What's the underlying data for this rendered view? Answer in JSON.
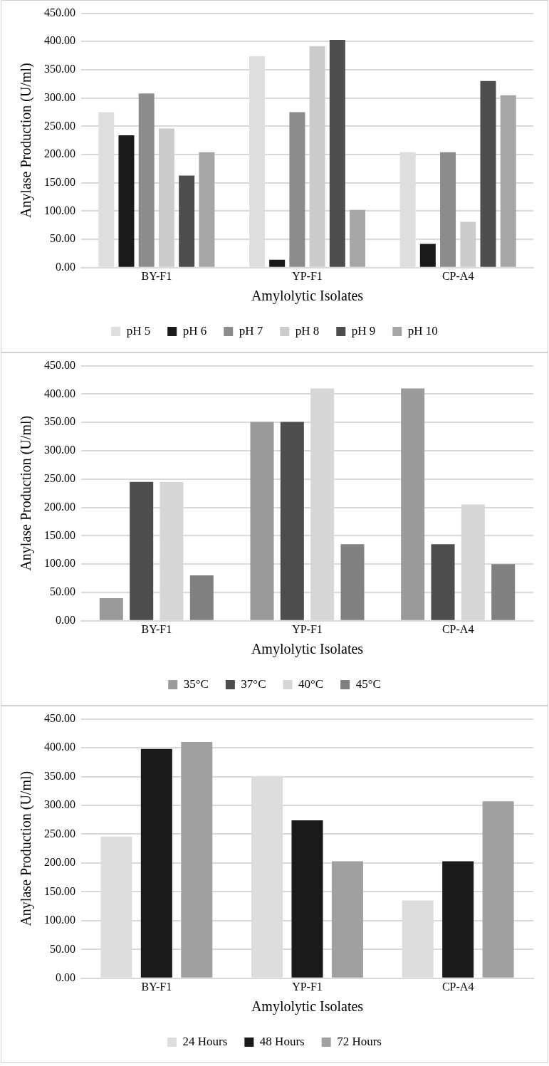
{
  "chart_data": [
    {
      "type": "bar",
      "xlabel": "Amylolytic Isolates",
      "ylabel": "Anylase Production (U/ml)",
      "categories": [
        "BY-F1",
        "YP-F1",
        "CP-A4"
      ],
      "series": [
        {
          "name": "pH 5",
          "color": "#dedede",
          "values": [
            275,
            374,
            204
          ]
        },
        {
          "name": "pH 6",
          "color": "#1a1a1a",
          "values": [
            234,
            14,
            42
          ]
        },
        {
          "name": "pH 7",
          "color": "#8c8c8c",
          "values": [
            308,
            275,
            204
          ]
        },
        {
          "name": "pH 8",
          "color": "#cccccc",
          "values": [
            246,
            392,
            81
          ]
        },
        {
          "name": "pH 9",
          "color": "#4d4d4d",
          "values": [
            163,
            403,
            330
          ]
        },
        {
          "name": "pH 10",
          "color": "#a6a6a6",
          "values": [
            204,
            102,
            305
          ]
        }
      ],
      "ylim": [
        0,
        450
      ],
      "yticks": [
        {
          "value": 0,
          "label": "0.00"
        },
        {
          "value": 50,
          "label": "50.00"
        },
        {
          "value": 100,
          "label": "100.00"
        },
        {
          "value": 150,
          "label": "150.00"
        },
        {
          "value": 200,
          "label": "200.00"
        },
        {
          "value": 250,
          "label": "250.00"
        },
        {
          "value": 300,
          "label": "300.00"
        },
        {
          "value": 350,
          "label": "350.00"
        },
        {
          "value": 400,
          "label": "400.00"
        },
        {
          "value": 450,
          "label": "450.00"
        }
      ],
      "grid": "y",
      "legend": "bottom"
    },
    {
      "type": "bar",
      "xlabel": "Amylolytic Isolates",
      "ylabel": "Anylase Production (U/ml)",
      "categories": [
        "BY-F1",
        "YP-F1",
        "CP-A4"
      ],
      "series": [
        {
          "name": "35°C",
          "color": "#9a9a9a",
          "values": [
            40,
            351,
            410
          ]
        },
        {
          "name": "37°C",
          "color": "#4d4d4d",
          "values": [
            245,
            351,
            135
          ]
        },
        {
          "name": "40°C",
          "color": "#d6d6d6",
          "values": [
            245,
            410,
            205
          ]
        },
        {
          "name": "45°C",
          "color": "#808080",
          "values": [
            80,
            135,
            100
          ]
        }
      ],
      "ylim": [
        0,
        450
      ],
      "yticks": [
        {
          "value": 0,
          "label": "0.00"
        },
        {
          "value": 50,
          "label": "50.00"
        },
        {
          "value": 100,
          "label": "100.00"
        },
        {
          "value": 150,
          "label": "150.00"
        },
        {
          "value": 200,
          "label": "200.00"
        },
        {
          "value": 250,
          "label": "250.00"
        },
        {
          "value": 300,
          "label": "300.00"
        },
        {
          "value": 350,
          "label": "350.00"
        },
        {
          "value": 400,
          "label": "400.00"
        },
        {
          "value": 450,
          "label": "450.00"
        }
      ],
      "grid": "y",
      "legend": "bottom"
    },
    {
      "type": "bar",
      "xlabel": "Amylolytic Isolates",
      "ylabel": "Anylase Production (U/ml)",
      "categories": [
        "BY-F1",
        "YP-F1",
        "CP-A4"
      ],
      "series": [
        {
          "name": "24 Hours",
          "color": "#dddddd",
          "values": [
            246,
            351,
            135
          ]
        },
        {
          "name": "48 Hours",
          "color": "#1a1a1a",
          "values": [
            398,
            274,
            203
          ]
        },
        {
          "name": "72 Hours",
          "color": "#a0a0a0",
          "values": [
            410,
            203,
            307
          ]
        }
      ],
      "ylim": [
        0,
        450
      ],
      "yticks": [
        {
          "value": 0,
          "label": "0.00"
        },
        {
          "value": 50,
          "label": "50.00"
        },
        {
          "value": 100,
          "label": "100.00"
        },
        {
          "value": 150,
          "label": "150.00"
        },
        {
          "value": 200,
          "label": "200.00"
        },
        {
          "value": 250,
          "label": "250.00"
        },
        {
          "value": 300,
          "label": "300.00"
        },
        {
          "value": 350,
          "label": "350.00"
        },
        {
          "value": 400,
          "label": "400.00"
        },
        {
          "value": 450,
          "label": "450.00"
        }
      ],
      "grid": "y",
      "legend": "bottom"
    }
  ]
}
